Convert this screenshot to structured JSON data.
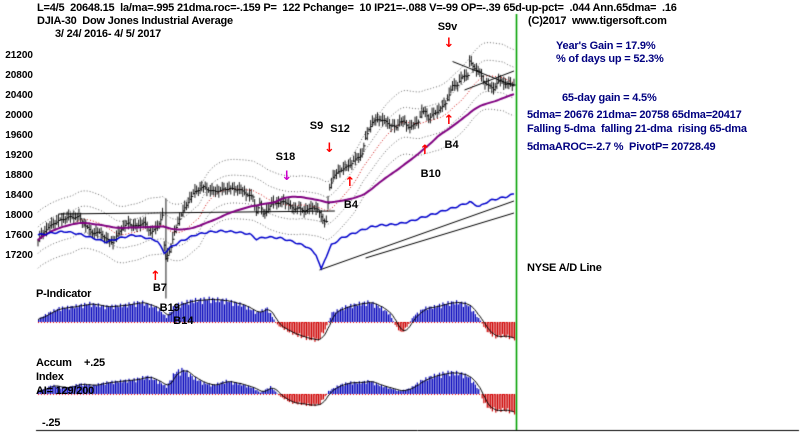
{
  "header": {
    "stats_line": "L=4/5  20648.15  la/ma=.995 21dma.roc=-.159 P=  122 Pchange=  10 IP21=-.088 V=-99 OP=-.39 65d-up-pct=  .044 Ann.65dma=  .16",
    "title": "DJIA-30  Dow Jones Industrial Average",
    "date_range": "3/ 24/ 2016- 4/ 5/ 2017",
    "copyright": "(C)2017  www.tigersoft.com"
  },
  "right_panel": {
    "years_gain": "Year's Gain = 17.9%",
    "days_up": "% of days up = 52.3%",
    "gain_65d": "65-day gain = 4.5%",
    "dma_line": "5dma= 20676 21dma= 20758 65dma=20417",
    "trend_line": "Falling 5-dma  falling 21-dma  rising 65-dma",
    "pivot_line": "5dmaAROC=-2.7 %  PivotP= 20728.49",
    "ad_label": "NYSE A/D Line"
  },
  "panel_labels": {
    "p_indicator": "P-Indicator",
    "accum": "Accum",
    "accum_plus": "+.25",
    "index": "Index",
    "ai": "AI= 129/200",
    "accum_minus": "-.25"
  },
  "colors": {
    "accent_green": "#00a000",
    "candle": "#000000",
    "ma65": "#800080",
    "ma21": "#cc0000",
    "band": "#666666",
    "ad_line": "#0000cc",
    "bar_pos": "#0000bb",
    "bar_neg": "#cc0000",
    "envelope": "#000000",
    "zero_line": "#ff0000",
    "text_blue": "#000080"
  },
  "chart_data": {
    "type": "candlestick",
    "title": "DJIA-30 Dow Jones Industrial Average",
    "date_range": "3/24/2016 - 4/5/2017",
    "last_close": 20648.15,
    "panels": [
      "price_ohlc_with_bands",
      "p_indicator_histogram",
      "accum_index_histogram"
    ],
    "y_ticks": [
      21200,
      20800,
      20400,
      20000,
      19600,
      19200,
      18800,
      18400,
      18000,
      17600,
      17200
    ],
    "ylim": [
      15800,
      21800
    ],
    "n_days": 280,
    "price_close_waypoints": [
      [
        0,
        17515
      ],
      [
        4,
        17700
      ],
      [
        9,
        17880
      ],
      [
        14,
        17920
      ],
      [
        19,
        18000
      ],
      [
        24,
        17990
      ],
      [
        27,
        17830
      ],
      [
        31,
        17705
      ],
      [
        36,
        17660
      ],
      [
        40,
        17535
      ],
      [
        44,
        17500
      ],
      [
        48,
        17700
      ],
      [
        53,
        17870
      ],
      [
        58,
        17800
      ],
      [
        62,
        17865
      ],
      [
        66,
        17700
      ],
      [
        70,
        17780
      ],
      [
        73,
        18010
      ],
      [
        74,
        17400
      ],
      [
        75,
        17140
      ],
      [
        78,
        17410
      ],
      [
        80,
        17695
      ],
      [
        83,
        17950
      ],
      [
        86,
        18150
      ],
      [
        89,
        18370
      ],
      [
        92,
        18500
      ],
      [
        97,
        18570
      ],
      [
        102,
        18520
      ],
      [
        107,
        18500
      ],
      [
        112,
        18575
      ],
      [
        117,
        18540
      ],
      [
        122,
        18450
      ],
      [
        126,
        18400
      ],
      [
        128,
        18090
      ],
      [
        130,
        18240
      ],
      [
        132,
        18040
      ],
      [
        135,
        18150
      ],
      [
        138,
        18310
      ],
      [
        141,
        18240
      ],
      [
        144,
        18300
      ],
      [
        147,
        18240
      ],
      [
        150,
        18170
      ],
      [
        153,
        18145
      ],
      [
        156,
        18100
      ],
      [
        159,
        18160
      ],
      [
        161,
        18200
      ],
      [
        164,
        18120
      ],
      [
        167,
        17920
      ],
      [
        169,
        17890
      ],
      [
        170,
        18260
      ],
      [
        171,
        18590
      ],
      [
        173,
        18810
      ],
      [
        176,
        18870
      ],
      [
        179,
        18950
      ],
      [
        182,
        19020
      ],
      [
        185,
        19120
      ],
      [
        188,
        19170
      ],
      [
        190,
        19250
      ],
      [
        192,
        19550
      ],
      [
        194,
        19760
      ],
      [
        196,
        19900
      ],
      [
        200,
        19930
      ],
      [
        204,
        19890
      ],
      [
        208,
        19820
      ],
      [
        210,
        19765
      ],
      [
        212,
        19890
      ],
      [
        214,
        19885
      ],
      [
        217,
        19805
      ],
      [
        220,
        19830
      ],
      [
        223,
        19890
      ],
      [
        225,
        20070
      ],
      [
        227,
        20095
      ],
      [
        229,
        19975
      ],
      [
        232,
        20055
      ],
      [
        234,
        20090
      ],
      [
        237,
        20175
      ],
      [
        239,
        20270
      ],
      [
        241,
        20450
      ],
      [
        243,
        20615
      ],
      [
        246,
        20625
      ],
      [
        248,
        20740
      ],
      [
        250,
        20815
      ],
      [
        252,
        20840
      ],
      [
        253,
        21115
      ],
      [
        255,
        21005
      ],
      [
        257,
        20925
      ],
      [
        259,
        20860
      ],
      [
        261,
        20700
      ],
      [
        263,
        20660
      ],
      [
        265,
        20610
      ],
      [
        267,
        20550
      ],
      [
        269,
        20660
      ],
      [
        271,
        20700
      ],
      [
        273,
        20660
      ],
      [
        275,
        20665
      ],
      [
        279,
        20648
      ]
    ],
    "ad_line_waypoints": [
      [
        0,
        17620
      ],
      [
        8,
        17660
      ],
      [
        16,
        17690
      ],
      [
        24,
        17640
      ],
      [
        32,
        17560
      ],
      [
        40,
        17480
      ],
      [
        48,
        17560
      ],
      [
        56,
        17620
      ],
      [
        64,
        17560
      ],
      [
        70,
        17500
      ],
      [
        74,
        17260
      ],
      [
        78,
        17380
      ],
      [
        84,
        17500
      ],
      [
        92,
        17620
      ],
      [
        100,
        17680
      ],
      [
        108,
        17700
      ],
      [
        116,
        17680
      ],
      [
        124,
        17640
      ],
      [
        128,
        17540
      ],
      [
        134,
        17580
      ],
      [
        142,
        17560
      ],
      [
        150,
        17480
      ],
      [
        158,
        17380
      ],
      [
        163,
        17230
      ],
      [
        166,
        16930
      ],
      [
        168,
        17120
      ],
      [
        172,
        17420
      ],
      [
        178,
        17560
      ],
      [
        184,
        17640
      ],
      [
        190,
        17720
      ],
      [
        196,
        17790
      ],
      [
        202,
        17820
      ],
      [
        208,
        17830
      ],
      [
        214,
        17860
      ],
      [
        220,
        17910
      ],
      [
        226,
        17980
      ],
      [
        232,
        18040
      ],
      [
        238,
        18110
      ],
      [
        244,
        18170
      ],
      [
        250,
        18240
      ],
      [
        253,
        18280
      ],
      [
        256,
        18230
      ],
      [
        259,
        18190
      ],
      [
        262,
        18260
      ],
      [
        266,
        18320
      ],
      [
        270,
        18350
      ],
      [
        274,
        18380
      ],
      [
        279,
        18440
      ]
    ],
    "p_indicator_waypoints": [
      [
        0,
        0.1
      ],
      [
        6,
        0.3
      ],
      [
        12,
        0.45
      ],
      [
        20,
        0.5
      ],
      [
        30,
        0.6
      ],
      [
        40,
        0.5
      ],
      [
        50,
        0.55
      ],
      [
        60,
        0.65
      ],
      [
        70,
        0.45
      ],
      [
        75,
        0.15
      ],
      [
        80,
        0.55
      ],
      [
        90,
        0.7
      ],
      [
        100,
        0.75
      ],
      [
        110,
        0.7
      ],
      [
        120,
        0.55
      ],
      [
        128,
        0.3
      ],
      [
        134,
        0.45
      ],
      [
        140,
        -0.1
      ],
      [
        146,
        -0.3
      ],
      [
        152,
        -0.45
      ],
      [
        158,
        -0.55
      ],
      [
        164,
        -0.6
      ],
      [
        168,
        -0.25
      ],
      [
        172,
        0.3
      ],
      [
        180,
        0.5
      ],
      [
        188,
        0.6
      ],
      [
        194,
        0.65
      ],
      [
        200,
        0.5
      ],
      [
        206,
        0.25
      ],
      [
        210,
        -0.2
      ],
      [
        213,
        -0.35
      ],
      [
        216,
        -0.15
      ],
      [
        220,
        0.2
      ],
      [
        226,
        0.45
      ],
      [
        232,
        0.5
      ],
      [
        238,
        0.6
      ],
      [
        244,
        0.65
      ],
      [
        250,
        0.6
      ],
      [
        253,
        0.5
      ],
      [
        256,
        0.25
      ],
      [
        259,
        0.05
      ],
      [
        262,
        -0.25
      ],
      [
        265,
        -0.4
      ],
      [
        268,
        -0.5
      ],
      [
        272,
        -0.45
      ],
      [
        279,
        -0.55
      ]
    ],
    "accum_waypoints": [
      [
        0,
        0.1
      ],
      [
        8,
        0.3
      ],
      [
        16,
        0.2
      ],
      [
        24,
        0.35
      ],
      [
        32,
        0.3
      ],
      [
        40,
        0.4
      ],
      [
        48,
        0.45
      ],
      [
        56,
        0.5
      ],
      [
        64,
        0.6
      ],
      [
        70,
        0.45
      ],
      [
        75,
        0.25
      ],
      [
        80,
        0.75
      ],
      [
        85,
        0.85
      ],
      [
        90,
        0.6
      ],
      [
        96,
        0.4
      ],
      [
        102,
        0.3
      ],
      [
        110,
        0.45
      ],
      [
        118,
        0.35
      ],
      [
        126,
        0.2
      ],
      [
        130,
        0.05
      ],
      [
        136,
        0.25
      ],
      [
        142,
        -0.1
      ],
      [
        148,
        -0.3
      ],
      [
        154,
        -0.35
      ],
      [
        160,
        -0.4
      ],
      [
        165,
        -0.35
      ],
      [
        170,
        0.1
      ],
      [
        176,
        0.3
      ],
      [
        182,
        0.4
      ],
      [
        188,
        0.4
      ],
      [
        194,
        0.45
      ],
      [
        200,
        0.3
      ],
      [
        206,
        0.2
      ],
      [
        212,
        0.1
      ],
      [
        218,
        0.2
      ],
      [
        224,
        0.45
      ],
      [
        230,
        0.6
      ],
      [
        236,
        0.7
      ],
      [
        242,
        0.75
      ],
      [
        248,
        0.7
      ],
      [
        252,
        0.6
      ],
      [
        255,
        0.4
      ],
      [
        258,
        0.15
      ],
      [
        261,
        -0.3
      ],
      [
        264,
        -0.5
      ],
      [
        268,
        -0.6
      ],
      [
        272,
        -0.55
      ],
      [
        279,
        -0.65
      ]
    ],
    "signals": [
      {
        "label": "S9v",
        "day": 239,
        "price": 21780,
        "color": "#000000"
      },
      {
        "label": "S9",
        "day": 164,
        "price": 19800,
        "color": "#000000"
      },
      {
        "label": "S12",
        "day": 176,
        "price": 19740,
        "color": "#000000"
      },
      {
        "label": "S18",
        "day": 144,
        "price": 19180,
        "color": "#000000"
      },
      {
        "label": "B4",
        "day": 243,
        "price": 19430,
        "color": "#000000"
      },
      {
        "label": "B10",
        "day": 229,
        "price": 18850,
        "color": "#000000"
      },
      {
        "label": "B4",
        "day": 184,
        "price": 18230,
        "color": "#000000"
      },
      {
        "label": "B7",
        "day": 72,
        "price": 16560,
        "color": "#000000"
      },
      {
        "label": "B19",
        "day": 76,
        "price": 16160,
        "color": "#000000"
      },
      {
        "label": "B14",
        "day": 84,
        "price": 15900,
        "color": "#000000"
      }
    ],
    "arrows": [
      {
        "dir": "down",
        "color": "#ff0000",
        "day": 240,
        "price": 21430
      },
      {
        "dir": "down",
        "color": "#ff0000",
        "day": 170,
        "price": 19330
      },
      {
        "dir": "down",
        "color": "#cc00cc",
        "day": 145,
        "price": 18760
      },
      {
        "dir": "up",
        "color": "#ff0000",
        "day": 240,
        "price": 19890
      },
      {
        "dir": "up",
        "color": "#ff0000",
        "day": 226,
        "price": 19290
      },
      {
        "dir": "up",
        "color": "#ff0000",
        "day": 182,
        "price": 18640
      },
      {
        "dir": "up",
        "color": "#ff0000",
        "day": 68,
        "price": 16760
      }
    ],
    "trendlines": [
      {
        "from": [
          12,
          18040
        ],
        "to": [
          174,
          18100
        ]
      },
      {
        "from": [
          165,
          16920
        ],
        "to": [
          279,
          18300
        ]
      },
      {
        "from": [
          192,
          17160
        ],
        "to": [
          279,
          18060
        ]
      },
      {
        "from": [
          243,
          21090
        ],
        "to": [
          279,
          20600
        ]
      },
      {
        "from": [
          250,
          20520
        ],
        "to": [
          279,
          20900
        ]
      }
    ],
    "event_vline": {
      "day": 75,
      "price_top": 18350,
      "price_bottom": 16350
    },
    "bands": {
      "ma21_period": 21,
      "ma65_period": 65,
      "inner_pct": 1.5,
      "outer_pct": 3.2
    }
  }
}
